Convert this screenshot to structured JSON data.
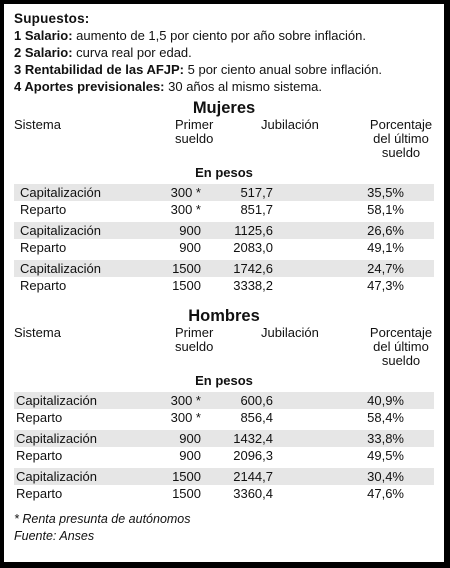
{
  "assumptions": {
    "title": "Supuestos:",
    "items": [
      {
        "label": "1 Salario:",
        "text": " aumento de 1,5 por ciento por año sobre inflación."
      },
      {
        "label": "2 Salario:",
        "text": " curva real por edad."
      },
      {
        "label": "3 Rentabilidad de las AFJP:",
        "text": " 5 por ciento anual sobre inflación."
      },
      {
        "label": "4 Aportes previsionales:",
        "text": " 30 años al mismo sistema."
      }
    ]
  },
  "mujeres": {
    "title": "Mujeres",
    "headers": {
      "sistema": "Sistema",
      "primer": "Primer sueldo",
      "jubilacion": "Jubilación",
      "porcentaje": "Porcentaje del último sueldo"
    },
    "subheader": "En pesos",
    "rows": [
      {
        "sistema": "Capitalización",
        "primer": "300 *",
        "jubilacion": "517,7",
        "porcentaje": "35,5%"
      },
      {
        "sistema": "Reparto",
        "primer": "300 *",
        "jubilacion": "851,7",
        "porcentaje": "58,1%"
      },
      {
        "sistema": "Capitalización",
        "primer": "900",
        "jubilacion": "1125,6",
        "porcentaje": "26,6%"
      },
      {
        "sistema": "Reparto",
        "primer": "900",
        "jubilacion": "2083,0",
        "porcentaje": "49,1%"
      },
      {
        "sistema": "Capitalización",
        "primer": "1500",
        "jubilacion": "1742,6",
        "porcentaje": "24,7%"
      },
      {
        "sistema": "Reparto",
        "primer": "1500",
        "jubilacion": "3338,2",
        "porcentaje": "47,3%"
      }
    ]
  },
  "hombres": {
    "title": "Hombres",
    "headers": {
      "sistema": "Sistema",
      "primer": "Primer sueldo",
      "jubilacion": "Jubilación",
      "porcentaje": "Porcentaje del último sueldo"
    },
    "subheader": "En pesos",
    "rows": [
      {
        "sistema": "Capitalización",
        "primer": "300 *",
        "jubilacion": "600,6",
        "porcentaje": "40,9%"
      },
      {
        "sistema": "Reparto",
        "primer": "300 *",
        "jubilacion": "856,4",
        "porcentaje": "58,4%"
      },
      {
        "sistema": "Capitalización",
        "primer": "900",
        "jubilacion": "1432,4",
        "porcentaje": "33,8%"
      },
      {
        "sistema": "Reparto",
        "primer": "900",
        "jubilacion": "2096,3",
        "porcentaje": "49,5%"
      },
      {
        "sistema": "Capitalización",
        "primer": "1500",
        "jubilacion": "2144,7",
        "porcentaje": "30,4%"
      },
      {
        "sistema": "Reparto",
        "primer": "1500",
        "jubilacion": "3360,4",
        "porcentaje": "47,6%"
      }
    ]
  },
  "footer": {
    "note": "* Renta presunta de autónomos",
    "source": "Fuente: Anses"
  }
}
